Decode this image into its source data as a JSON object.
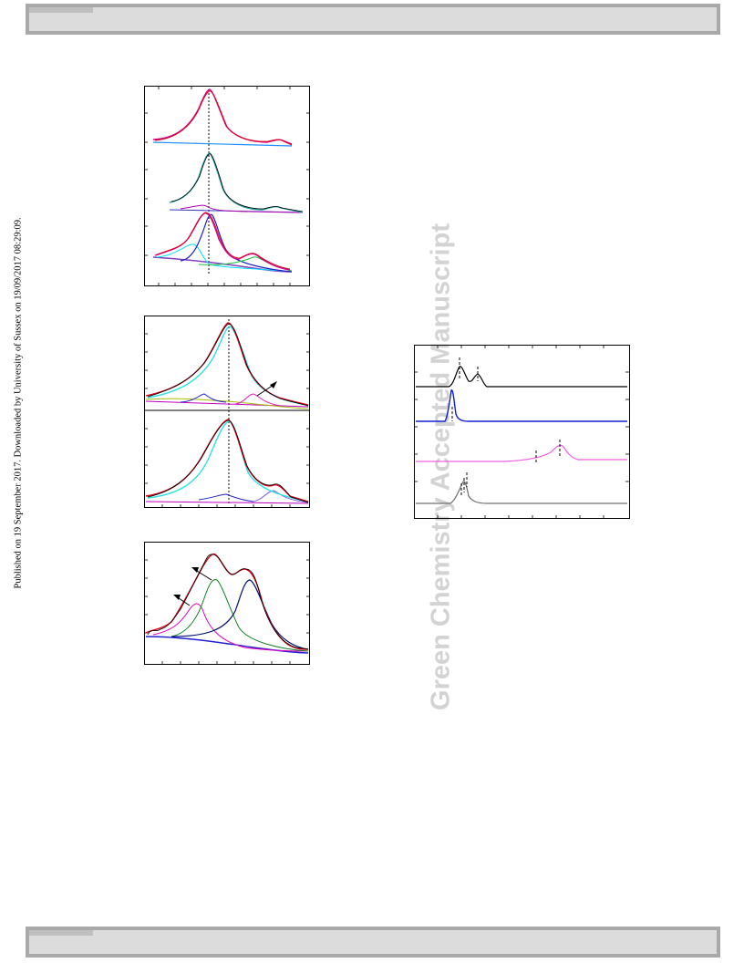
{
  "side_note": "Published on 19 September 2017. Downloaded by University of Sussex on 19/09/2017 08:29:09.",
  "watermark": "Green Chemistry Accepted Manuscript",
  "colors": {
    "frame_bar": "#dcdcdc",
    "frame_border": "#a9a9a9",
    "watermark": "#d3d3d3"
  }
}
